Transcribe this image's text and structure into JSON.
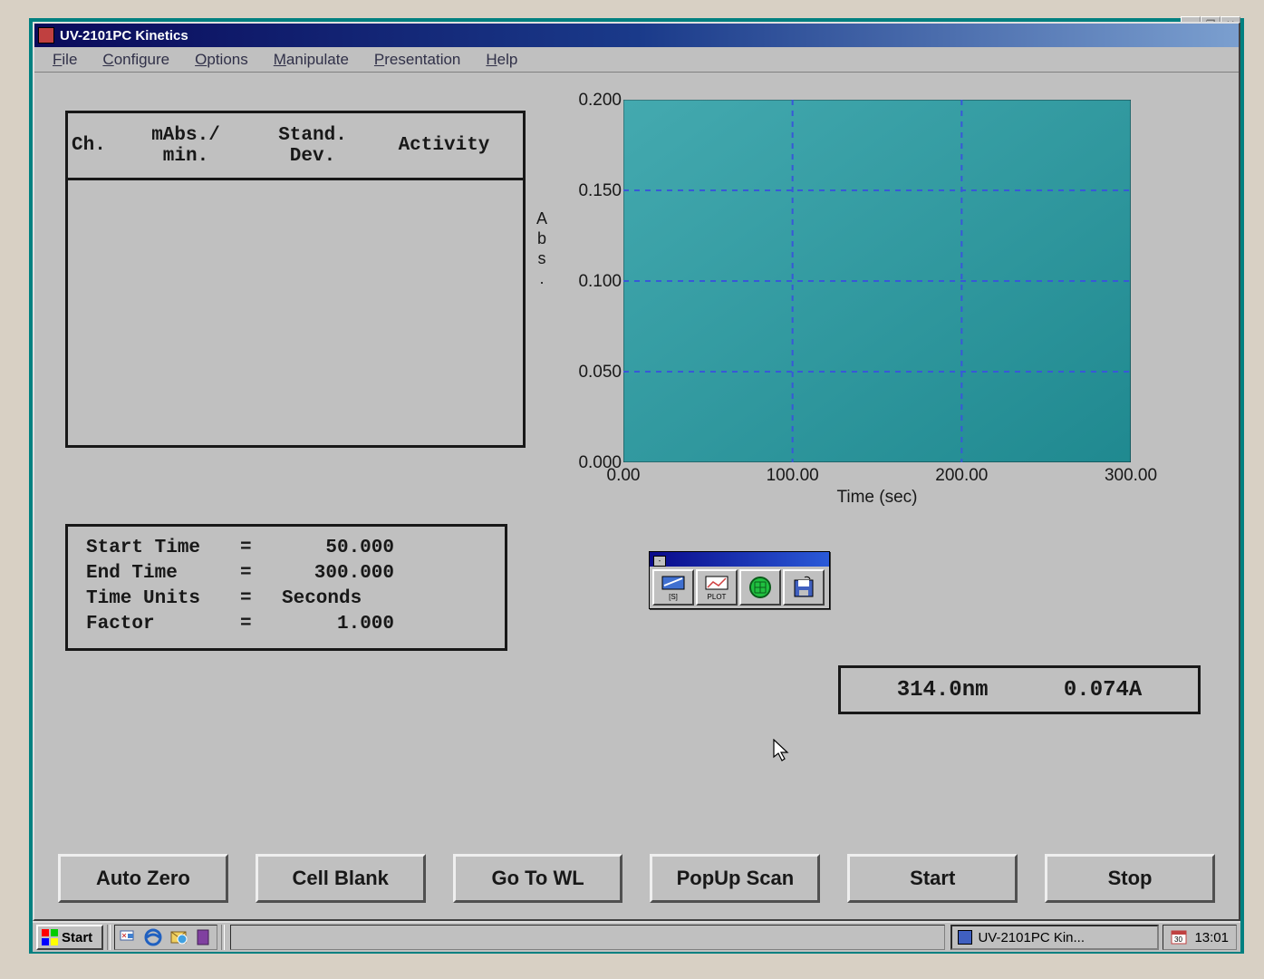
{
  "window": {
    "title": "UV-2101PC Kinetics"
  },
  "menu": {
    "items": [
      "File",
      "Configure",
      "Options",
      "Manipulate",
      "Presentation",
      "Help"
    ]
  },
  "table": {
    "headers": {
      "ch": "Ch.",
      "mabs_line1": "mAbs./",
      "mabs_line2": "min.",
      "sd_line1": "Stand.",
      "sd_line2": "Dev.",
      "activity": "Activity"
    }
  },
  "params": {
    "start_time_label": "Start Time",
    "start_time_value": "50.000",
    "end_time_label": "End Time",
    "end_time_value": "300.000",
    "time_units_label": "Time Units",
    "time_units_value": "Seconds",
    "factor_label": "Factor",
    "factor_value": "1.000"
  },
  "chart": {
    "type": "line",
    "y_label": "Abs.",
    "x_label": "Time (sec)",
    "xlim": [
      0,
      300
    ],
    "ylim": [
      0,
      0.2
    ],
    "x_ticks": [
      "0.00",
      "100.00",
      "200.00",
      "300.00"
    ],
    "x_tick_values": [
      0,
      100,
      200,
      300
    ],
    "y_ticks": [
      "0.000",
      "0.050",
      "0.100",
      "0.150",
      "0.200"
    ],
    "y_tick_values": [
      0,
      0.05,
      0.1,
      0.15,
      0.2
    ],
    "plot_bg_color": "#2a9aa0",
    "grid_color": "#3858d8",
    "grid_dash": "6 6",
    "series": []
  },
  "palette": {
    "tools": [
      "ts",
      "plot",
      "go",
      "save"
    ]
  },
  "readout": {
    "wavelength": "314.0nm",
    "absorbance": "0.074A"
  },
  "buttons": {
    "auto_zero": "Auto Zero",
    "cell_blank": "Cell Blank",
    "go_to_wl": "Go To WL",
    "popup_scan": "PopUp Scan",
    "start": "Start",
    "stop": "Stop"
  },
  "taskbar": {
    "start": "Start",
    "task_item": "UV-2101PC Kin...",
    "clock": "13:01"
  },
  "colors": {
    "desktop": "#008080",
    "face": "#c0c0c0",
    "border_dark": "#181818"
  }
}
